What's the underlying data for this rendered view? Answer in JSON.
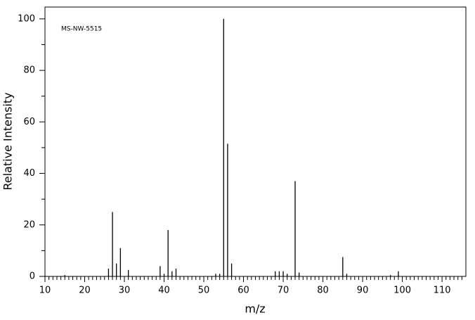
{
  "chart_data": {
    "type": "stem",
    "annotation": "MS-NW-5515",
    "xlabel": "m/z",
    "ylabel": "Relative Intensity",
    "x": [
      15,
      26,
      27,
      28,
      29,
      31,
      39,
      40,
      41,
      42,
      43,
      53,
      54,
      55,
      56,
      57,
      68,
      69,
      70,
      71,
      73,
      74,
      85,
      86,
      97,
      99
    ],
    "values": [
      0.5,
      3,
      25,
      5,
      11,
      2.5,
      4,
      1,
      18,
      2,
      3,
      1,
      1,
      100,
      51.5,
      5,
      2,
      2,
      2,
      1,
      37,
      1.5,
      7.5,
      1,
      0.5,
      2
    ],
    "color": "#000000",
    "xlim": [
      10,
      116
    ],
    "ylim": [
      0,
      104.6
    ],
    "xticks": [
      10,
      20,
      30,
      40,
      50,
      60,
      70,
      80,
      90,
      100,
      110
    ],
    "x_minor_ticks": [
      11,
      12,
      13,
      14,
      15,
      16,
      17,
      18,
      19,
      21,
      22,
      23,
      24,
      25,
      26,
      27,
      28,
      29,
      31,
      32,
      33,
      34,
      35,
      36,
      37,
      38,
      39,
      41,
      42,
      43,
      44,
      45,
      46,
      47,
      48,
      49,
      51,
      52,
      53,
      54,
      55,
      56,
      57,
      58,
      59,
      61,
      62,
      63,
      64,
      65,
      66,
      67,
      68,
      69,
      71,
      72,
      73,
      74,
      75,
      76,
      77,
      78,
      79,
      81,
      82,
      83,
      84,
      85,
      86,
      87,
      88,
      89,
      91,
      92,
      93,
      94,
      95,
      96,
      97,
      98,
      99,
      101,
      102,
      103,
      104,
      105,
      106,
      107,
      108,
      109,
      111,
      112,
      113,
      114,
      115
    ],
    "yticks": [
      0,
      20,
      40,
      60,
      80,
      100
    ],
    "y_minor_ticks": [
      10,
      30,
      50,
      70,
      90
    ]
  }
}
